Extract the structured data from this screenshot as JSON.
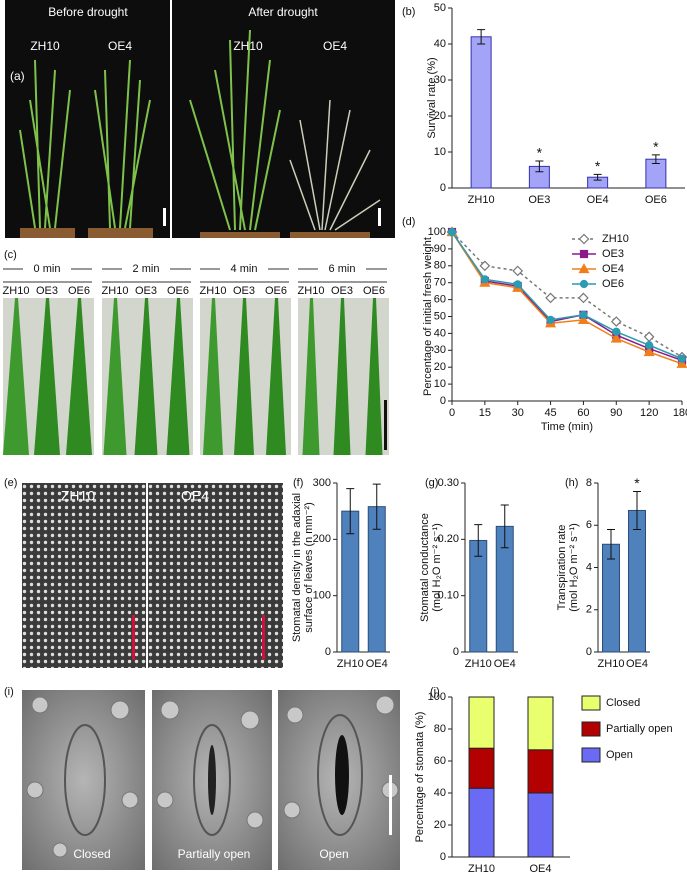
{
  "photos": {
    "a": {
      "panel": "(a)",
      "left_title": "Before drought",
      "right_title": "After drought",
      "left_genotypes": [
        "ZH10",
        "OE4"
      ],
      "right_genotypes": [
        "ZH10",
        "OE4"
      ]
    },
    "c": {
      "panel": "(c)",
      "times": [
        "0 min",
        "2 min",
        "4 min",
        "6 min"
      ],
      "genotypes": [
        "ZH10",
        "OE3",
        "OE6"
      ]
    },
    "e": {
      "panel": "(e)",
      "labels": [
        "ZH10",
        "OE4"
      ]
    },
    "i": {
      "panel": "(i)",
      "labels": [
        "Closed",
        "Partially open",
        "Open"
      ]
    }
  },
  "chart_data": [
    {
      "type": "bar",
      "panel": "(b)",
      "ylabel": [
        "Survival rate (%)"
      ],
      "categories": [
        "ZH10",
        "OE3",
        "OE4",
        "OE6"
      ],
      "values": [
        42,
        6,
        3,
        8
      ],
      "errors": [
        2,
        1.5,
        0.8,
        1.2
      ],
      "color": "#a3a3f7",
      "edge": "#3333aa",
      "ylim": [
        0,
        50
      ],
      "yticks": [
        0,
        10,
        20,
        30,
        40,
        50
      ],
      "significance": [
        {
          "category": "OE3",
          "text": "*"
        },
        {
          "category": "OE4",
          "text": "*"
        },
        {
          "category": "OE6",
          "text": "*"
        }
      ]
    },
    {
      "type": "line",
      "panel": "(d)",
      "ylabel": [
        "Percentage of initial fresh weight"
      ],
      "xlabel": "Time (min)",
      "categories": [
        "0",
        "15",
        "30",
        "45",
        "60",
        "90",
        "120",
        "180"
      ],
      "series": [
        {
          "name": "ZH10",
          "color": "#777777",
          "marker": "diamond",
          "filled": false,
          "dashed": true,
          "values": [
            100,
            80,
            77,
            61,
            61,
            47,
            38,
            26
          ]
        },
        {
          "name": "OE3",
          "color": "#8b1a8b",
          "marker": "square",
          "filled": true,
          "dashed": false,
          "values": [
            100,
            71,
            68,
            47,
            51,
            39,
            31,
            24
          ]
        },
        {
          "name": "OE4",
          "color": "#f07f1a",
          "marker": "triangle",
          "filled": true,
          "dashed": false,
          "values": [
            100,
            70,
            67,
            46,
            48,
            37,
            29,
            22
          ]
        },
        {
          "name": "OE6",
          "color": "#2a9bb0",
          "marker": "circle",
          "filled": true,
          "dashed": false,
          "values": [
            100,
            72,
            69,
            48,
            51,
            41,
            33,
            25
          ]
        }
      ],
      "ylim": [
        0,
        100
      ],
      "yticks": [
        0,
        10,
        20,
        30,
        40,
        50,
        60,
        70,
        80,
        90,
        100
      ],
      "legend": "upper right"
    },
    {
      "type": "bar",
      "panel": "(f)",
      "ylabel": [
        "Stomatal density in the adaxial",
        "surface of leaves (n mm⁻²)"
      ],
      "categories": [
        "ZH10",
        "OE4"
      ],
      "values": [
        250,
        258
      ],
      "errors": [
        40,
        40
      ],
      "color": "#4f81bd",
      "edge": "#2c4d75",
      "ylim": [
        0,
        300
      ],
      "yticks": [
        0,
        100,
        200,
        300
      ]
    },
    {
      "type": "bar",
      "panel": "(g)",
      "ylabel": [
        "Stomatal conductance",
        "(mol H₂O m⁻² s⁻¹)"
      ],
      "categories": [
        "ZH10",
        "OE4"
      ],
      "values": [
        0.198,
        0.223
      ],
      "errors": [
        0.028,
        0.038
      ],
      "color": "#4f81bd",
      "edge": "#2c4d75",
      "ylim": [
        0,
        0.3
      ],
      "yticks": [
        0,
        {
          "value": 0.1,
          "label": "0.10"
        },
        {
          "value": 0.2,
          "label": "0.20"
        },
        {
          "value": 0.3,
          "label": "0.30"
        }
      ]
    },
    {
      "type": "bar",
      "panel": "(h)",
      "ylabel": [
        "Transpiration rate",
        "(mol H₂O m⁻² s⁻¹)"
      ],
      "categories": [
        "ZH10",
        "OE4"
      ],
      "values": [
        5.1,
        6.7
      ],
      "errors": [
        0.7,
        0.9
      ],
      "color": "#4f81bd",
      "edge": "#2c4d75",
      "ylim": [
        0,
        8
      ],
      "yticks": [
        0,
        2,
        4,
        6,
        8
      ],
      "significance": [
        {
          "category": "OE4",
          "text": "*"
        }
      ]
    },
    {
      "type": "stacked_bar",
      "panel": "(j)",
      "ylabel": [
        "Percentage of stomata (%)"
      ],
      "categories": [
        "ZH10",
        "OE4"
      ],
      "series": [
        {
          "name": "Open",
          "color": "#6a6af5",
          "values": [
            43,
            40
          ]
        },
        {
          "name": "Partially open",
          "color": "#b30000",
          "values": [
            25,
            27
          ]
        },
        {
          "name": "Closed",
          "color": "#eaff6e",
          "values": [
            32,
            33
          ]
        }
      ],
      "ylim": [
        0,
        100
      ],
      "yticks": [
        0,
        20,
        40,
        60,
        80,
        100
      ],
      "legend": "right"
    }
  ]
}
